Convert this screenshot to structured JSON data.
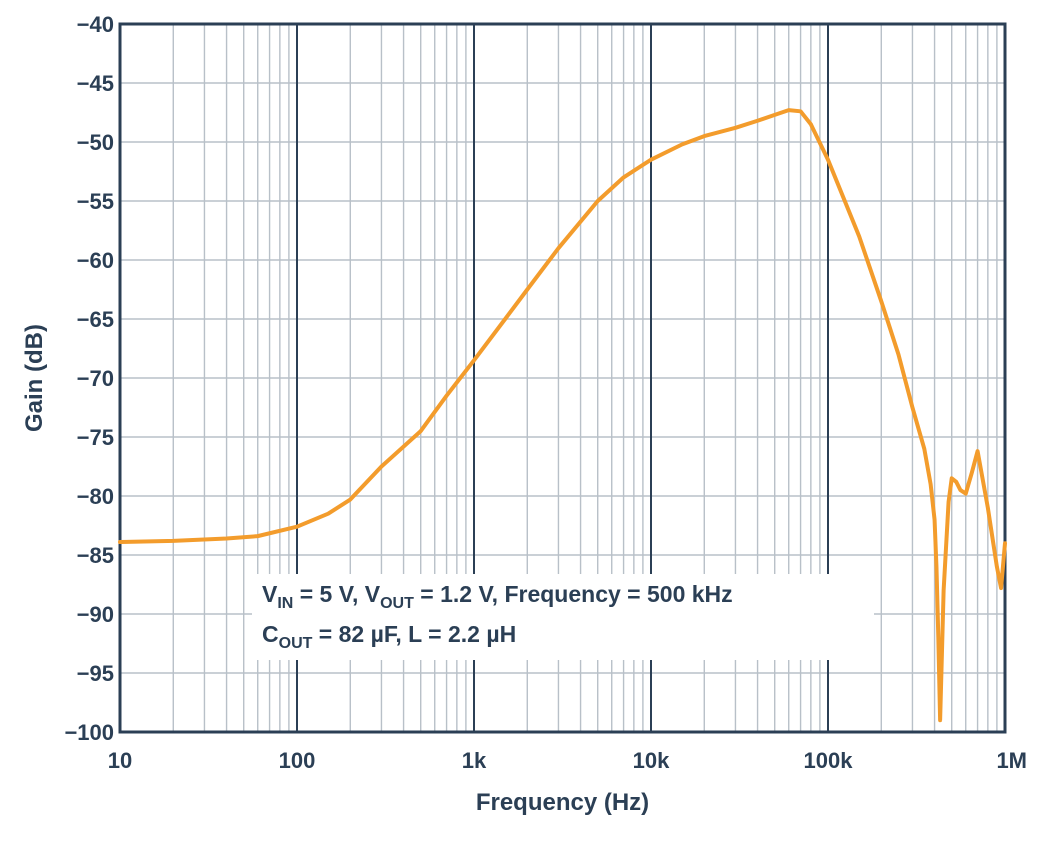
{
  "chart_data": {
    "type": "line",
    "title": "",
    "xlabel": "Frequency (Hz)",
    "ylabel": "Gain (dB)",
    "xscale": "log",
    "xlim": [
      10,
      1000000
    ],
    "ylim": [
      -100,
      -40
    ],
    "grid": true,
    "x_ticks": [
      {
        "value": 10,
        "label": "10"
      },
      {
        "value": 100,
        "label": "100"
      },
      {
        "value": 1000,
        "label": "1k"
      },
      {
        "value": 10000,
        "label": "10k"
      },
      {
        "value": 100000,
        "label": "100k"
      },
      {
        "value": 1000000,
        "label": "1M"
      }
    ],
    "y_ticks": [
      {
        "value": -40,
        "label": "−40"
      },
      {
        "value": -45,
        "label": "−45"
      },
      {
        "value": -50,
        "label": "−50"
      },
      {
        "value": -55,
        "label": "−55"
      },
      {
        "value": -60,
        "label": "−60"
      },
      {
        "value": -65,
        "label": "−65"
      },
      {
        "value": -70,
        "label": "−70"
      },
      {
        "value": -75,
        "label": "−75"
      },
      {
        "value": -80,
        "label": "−80"
      },
      {
        "value": -85,
        "label": "−85"
      },
      {
        "value": -90,
        "label": "−90"
      },
      {
        "value": -95,
        "label": "−95"
      },
      {
        "value": -100,
        "label": "−100"
      }
    ],
    "series": [
      {
        "name": "Gain",
        "color": "#f39c2c",
        "x": [
          10,
          20,
          40,
          60,
          100,
          150,
          200,
          300,
          500,
          700,
          1000,
          1500,
          2000,
          3000,
          5000,
          7000,
          10000,
          15000,
          20000,
          30000,
          40000,
          50000,
          60000,
          70000,
          80000,
          100000,
          150000,
          200000,
          250000,
          300000,
          350000,
          380000,
          400000,
          410000,
          420000,
          430000,
          450000,
          480000,
          500000,
          530000,
          560000,
          600000,
          650000,
          700000,
          800000,
          900000,
          950000,
          1000000
        ],
        "y": [
          -83.9,
          -83.8,
          -83.6,
          -83.4,
          -82.6,
          -81.5,
          -80.3,
          -77.5,
          -74.5,
          -71.5,
          -68.5,
          -65.0,
          -62.5,
          -59.0,
          -55.0,
          -53.0,
          -51.5,
          -50.2,
          -49.5,
          -48.8,
          -48.2,
          -47.7,
          -47.3,
          -47.4,
          -48.5,
          -51.5,
          -58.0,
          -63.5,
          -68.0,
          -72.5,
          -76.0,
          -79.0,
          -82.0,
          -86.0,
          -92.0,
          -99.0,
          -88.0,
          -80.5,
          -78.5,
          -78.8,
          -79.5,
          -79.8,
          -78.0,
          -76.2,
          -81.0,
          -86.0,
          -87.8,
          -84.0
        ]
      }
    ],
    "annotation": {
      "line1": {
        "v1": "V",
        "v1_sub": "IN",
        "v1_rest": " = 5 V, ",
        "v2": "V",
        "v2_sub": "OUT",
        "v2_rest": " = 1.2 V, Frequency = 500 kHz"
      },
      "line2": {
        "c": "C",
        "c_sub": "OUT",
        "c_rest": " = 82 µF, L = 2.2 µH"
      }
    }
  }
}
